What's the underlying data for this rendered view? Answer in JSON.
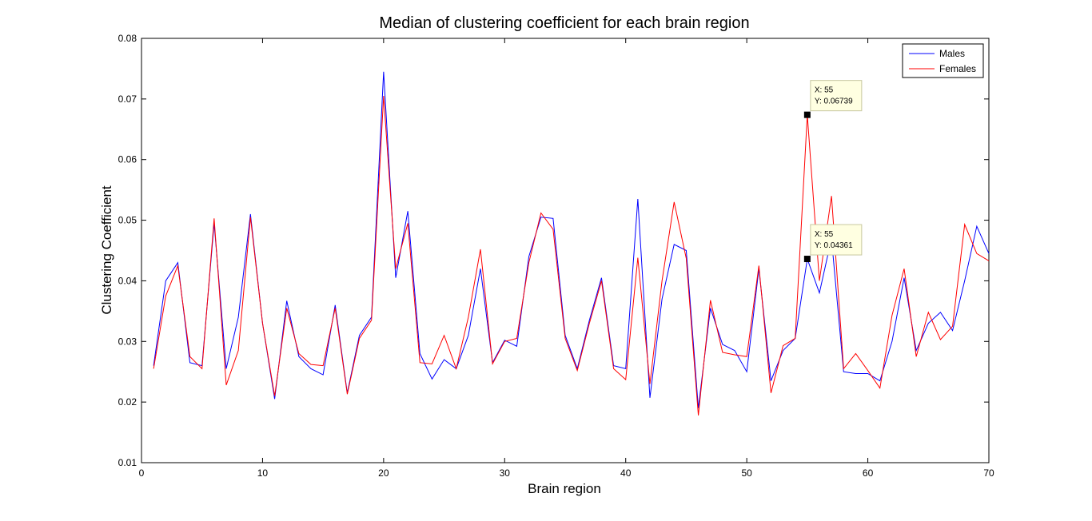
{
  "chart_data": {
    "type": "line",
    "title": "Median of clustering coefficient for each brain region",
    "xlabel": "Brain region",
    "ylabel": "Clustering Coefficient",
    "xlim": [
      0,
      70
    ],
    "ylim": [
      0.01,
      0.08
    ],
    "xticks": [
      "0",
      "10",
      "20",
      "30",
      "40",
      "50",
      "60",
      "70"
    ],
    "yticks": [
      "0.01",
      "0.02",
      "0.03",
      "0.04",
      "0.05",
      "0.06",
      "0.07",
      "0.08"
    ],
    "grid": false,
    "legend_position": "top-right",
    "x": [
      1,
      2,
      3,
      4,
      5,
      6,
      7,
      8,
      9,
      10,
      11,
      12,
      13,
      14,
      15,
      16,
      17,
      18,
      19,
      20,
      21,
      22,
      23,
      24,
      25,
      26,
      27,
      28,
      29,
      30,
      31,
      32,
      33,
      34,
      35,
      36,
      37,
      38,
      39,
      40,
      41,
      42,
      43,
      44,
      45,
      46,
      47,
      48,
      49,
      50,
      51,
      52,
      53,
      54,
      55,
      56,
      57,
      58,
      59,
      60,
      61,
      62,
      63,
      64,
      65,
      66,
      67,
      68,
      69,
      70
    ],
    "series": [
      {
        "name": "Males",
        "color": "#0000ff",
        "values": [
          0.026,
          0.04,
          0.043,
          0.0265,
          0.026,
          0.0495,
          0.0255,
          0.034,
          0.051,
          0.033,
          0.0205,
          0.0367,
          0.0275,
          0.0255,
          0.0245,
          0.036,
          0.0215,
          0.031,
          0.034,
          0.0745,
          0.0405,
          0.0515,
          0.028,
          0.0238,
          0.027,
          0.0255,
          0.031,
          0.042,
          0.0265,
          0.0302,
          0.0292,
          0.044,
          0.0505,
          0.0503,
          0.031,
          0.0255,
          0.0335,
          0.0405,
          0.026,
          0.0255,
          0.0535,
          0.0207,
          0.037,
          0.046,
          0.045,
          0.019,
          0.0355,
          0.0295,
          0.0285,
          0.025,
          0.042,
          0.0235,
          0.0285,
          0.0305,
          0.04361,
          0.038,
          0.047,
          0.025,
          0.0247,
          0.0247,
          0.0235,
          0.03,
          0.0405,
          0.0285,
          0.033,
          0.0348,
          0.0318,
          0.04,
          0.049,
          0.0445
        ]
      },
      {
        "name": "Females",
        "color": "#ff0000",
        "values": [
          0.0255,
          0.0375,
          0.0425,
          0.0275,
          0.0255,
          0.0503,
          0.0228,
          0.0285,
          0.0505,
          0.033,
          0.021,
          0.0355,
          0.028,
          0.0262,
          0.026,
          0.0355,
          0.0213,
          0.0305,
          0.0335,
          0.0705,
          0.042,
          0.0495,
          0.0265,
          0.0263,
          0.031,
          0.0255,
          0.034,
          0.0452,
          0.0263,
          0.03,
          0.0305,
          0.043,
          0.0512,
          0.0485,
          0.0305,
          0.0252,
          0.033,
          0.04,
          0.0255,
          0.0237,
          0.0438,
          0.023,
          0.04,
          0.053,
          0.0437,
          0.0178,
          0.0368,
          0.0282,
          0.0278,
          0.0275,
          0.0425,
          0.0215,
          0.0293,
          0.0305,
          0.06739,
          0.04,
          0.054,
          0.0255,
          0.028,
          0.0252,
          0.0223,
          0.0343,
          0.042,
          0.0275,
          0.0348,
          0.0303,
          0.0325,
          0.0493,
          0.0445,
          0.0433
        ]
      }
    ],
    "annotations": [
      {
        "x": 55,
        "y": 0.06739,
        "line1": "X: 55",
        "line2": "Y: 0.06739"
      },
      {
        "x": 55,
        "y": 0.04361,
        "line1": "X: 55",
        "line2": "Y: 0.04361"
      }
    ]
  }
}
